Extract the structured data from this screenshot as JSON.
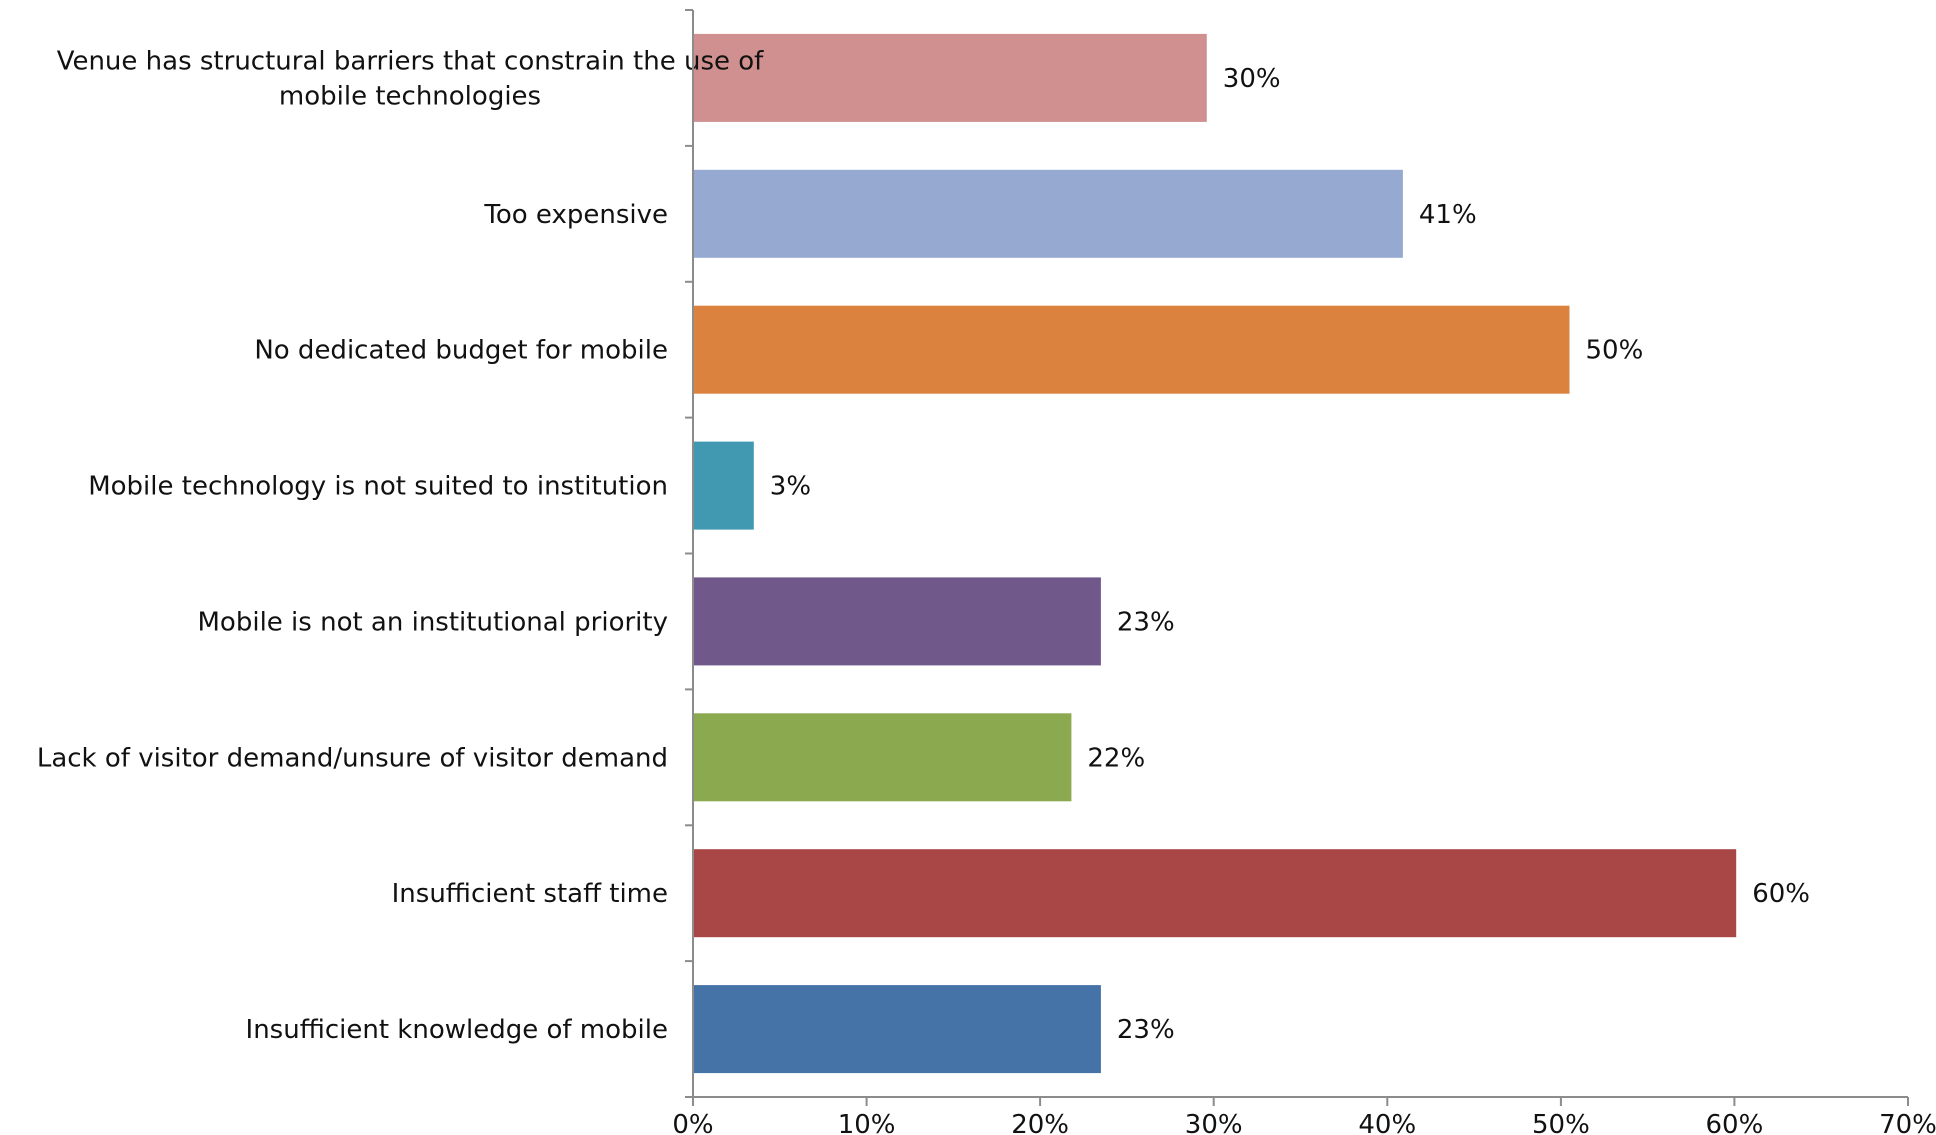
{
  "chart_data": {
    "type": "bar",
    "orientation": "horizontal",
    "title": "",
    "xlabel": "",
    "ylabel": "",
    "xlim": [
      0,
      70
    ],
    "x_ticks": [
      0,
      10,
      20,
      30,
      40,
      50,
      60,
      70
    ],
    "x_tick_labels": [
      "0%",
      "10%",
      "20%",
      "30%",
      "40%",
      "50%",
      "60%",
      "70%"
    ],
    "grid": false,
    "legend": "none",
    "categories": [
      "Venue has structural barriers that constrain the use of mobile technologies",
      "Too expensive",
      "No dedicated budget for mobile",
      "Mobile technology is not suited to institution",
      "Mobile is not an institutional priority",
      "Lack of visitor demand/unsure of visitor demand",
      "Insufficient staff time",
      "Insufficient knowledge of mobile"
    ],
    "category_label_lines": [
      [
        "Venue has structural barriers that constrain the use of",
        "mobile technologies"
      ],
      [
        "Too expensive"
      ],
      [
        "No dedicated budget for mobile"
      ],
      [
        "Mobile technology is not suited to institution"
      ],
      [
        "Mobile is not an institutional priority"
      ],
      [
        "Lack of visitor demand/unsure of visitor demand"
      ],
      [
        "Insufficient staff time"
      ],
      [
        "Insufficient knowledge of mobile"
      ]
    ],
    "values": [
      29.6,
      40.9,
      50.5,
      3.5,
      23.5,
      21.8,
      60.1,
      23.5
    ],
    "data_labels": [
      "30%",
      "41%",
      "50%",
      "3%",
      "23%",
      "22%",
      "60%",
      "23%"
    ],
    "colors": [
      "#d09090",
      "#95a9d1",
      "#db823f",
      "#4199b1",
      "#70588b",
      "#8ba94f",
      "#a84746",
      "#4573a7"
    ]
  }
}
